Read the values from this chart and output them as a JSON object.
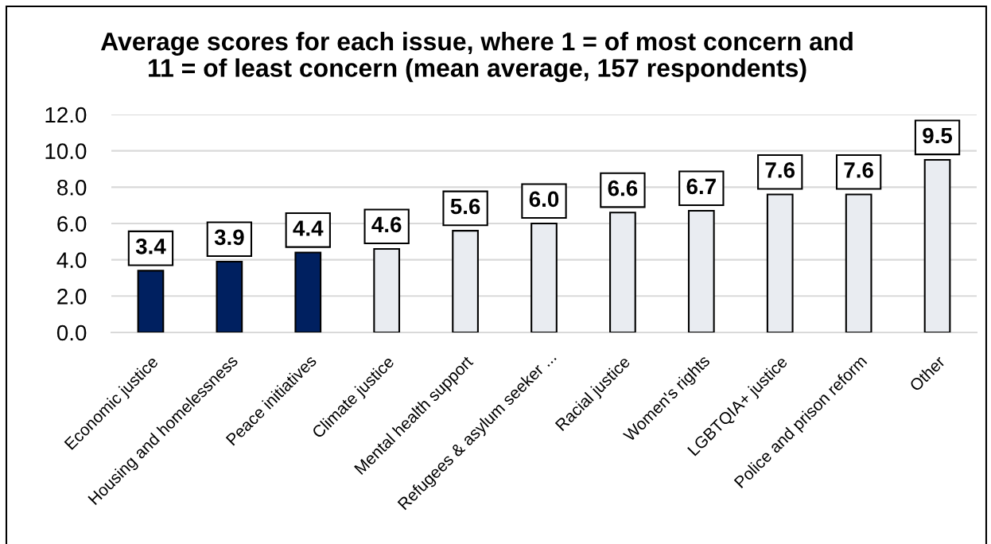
{
  "chart_data": {
    "type": "bar",
    "title": "Average scores for each issue, where 1 = of most concern and\n11 = of least concern (mean average, 157 respondents)",
    "categories": [
      "Economic justice",
      "Housing and homelessness",
      "Peace initiatives",
      "Climate justice",
      "Mental health support",
      "Refugees & asylum seeker ...",
      "Racial justice",
      "Women's rights",
      "LGBTQIA+ justice",
      "Police and prison reform",
      "Other"
    ],
    "values": [
      3.4,
      3.9,
      4.4,
      4.6,
      5.6,
      6.0,
      6.6,
      6.7,
      7.6,
      7.6,
      9.5
    ],
    "value_labels": [
      "3.4",
      "3.9",
      "4.4",
      "4.6",
      "5.6",
      "6.0",
      "6.6",
      "6.7",
      "7.6",
      "7.6",
      "9.5"
    ],
    "colors": [
      "#002060",
      "#002060",
      "#002060",
      "#e9ecf1",
      "#e9ecf1",
      "#e9ecf1",
      "#e9ecf1",
      "#e9ecf1",
      "#e9ecf1",
      "#e9ecf1",
      "#e9ecf1"
    ],
    "ylim": [
      0,
      12
    ],
    "yticks": [
      {
        "value": 0,
        "label": "0.0"
      },
      {
        "value": 2,
        "label": "2.0"
      },
      {
        "value": 4,
        "label": "4.0"
      },
      {
        "value": 6,
        "label": "6.0"
      },
      {
        "value": 8,
        "label": "8.0"
      },
      {
        "value": 10,
        "label": "10.0"
      },
      {
        "value": 12,
        "label": "12.0"
      }
    ],
    "grid": "y"
  }
}
